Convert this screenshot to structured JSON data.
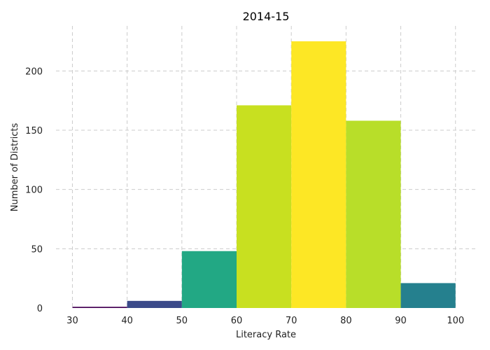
{
  "chart_data": {
    "type": "bar",
    "title": "2014-15",
    "xlabel": "Literacy Rate",
    "ylabel": "Number of Districts",
    "bins": [
      {
        "start": 30,
        "end": 40,
        "value": 1,
        "color": "#440154"
      },
      {
        "start": 40,
        "end": 50,
        "value": 6,
        "color": "#3b4a8a"
      },
      {
        "start": 50,
        "end": 60,
        "value": 48,
        "color": "#22a884"
      },
      {
        "start": 60,
        "end": 70,
        "value": 171,
        "color": "#c8e020"
      },
      {
        "start": 70,
        "end": 80,
        "value": 225,
        "color": "#fde725"
      },
      {
        "start": 80,
        "end": 90,
        "value": 158,
        "color": "#b8de29"
      },
      {
        "start": 90,
        "end": 100,
        "value": 21,
        "color": "#25808e"
      }
    ],
    "xlim": [
      27,
      104
    ],
    "ylim": [
      0,
      238
    ],
    "x_ticks": [
      30,
      40,
      50,
      60,
      70,
      80,
      90,
      100
    ],
    "y_ticks": [
      0,
      50,
      100,
      150,
      200
    ],
    "grid": true,
    "legend": "none"
  }
}
